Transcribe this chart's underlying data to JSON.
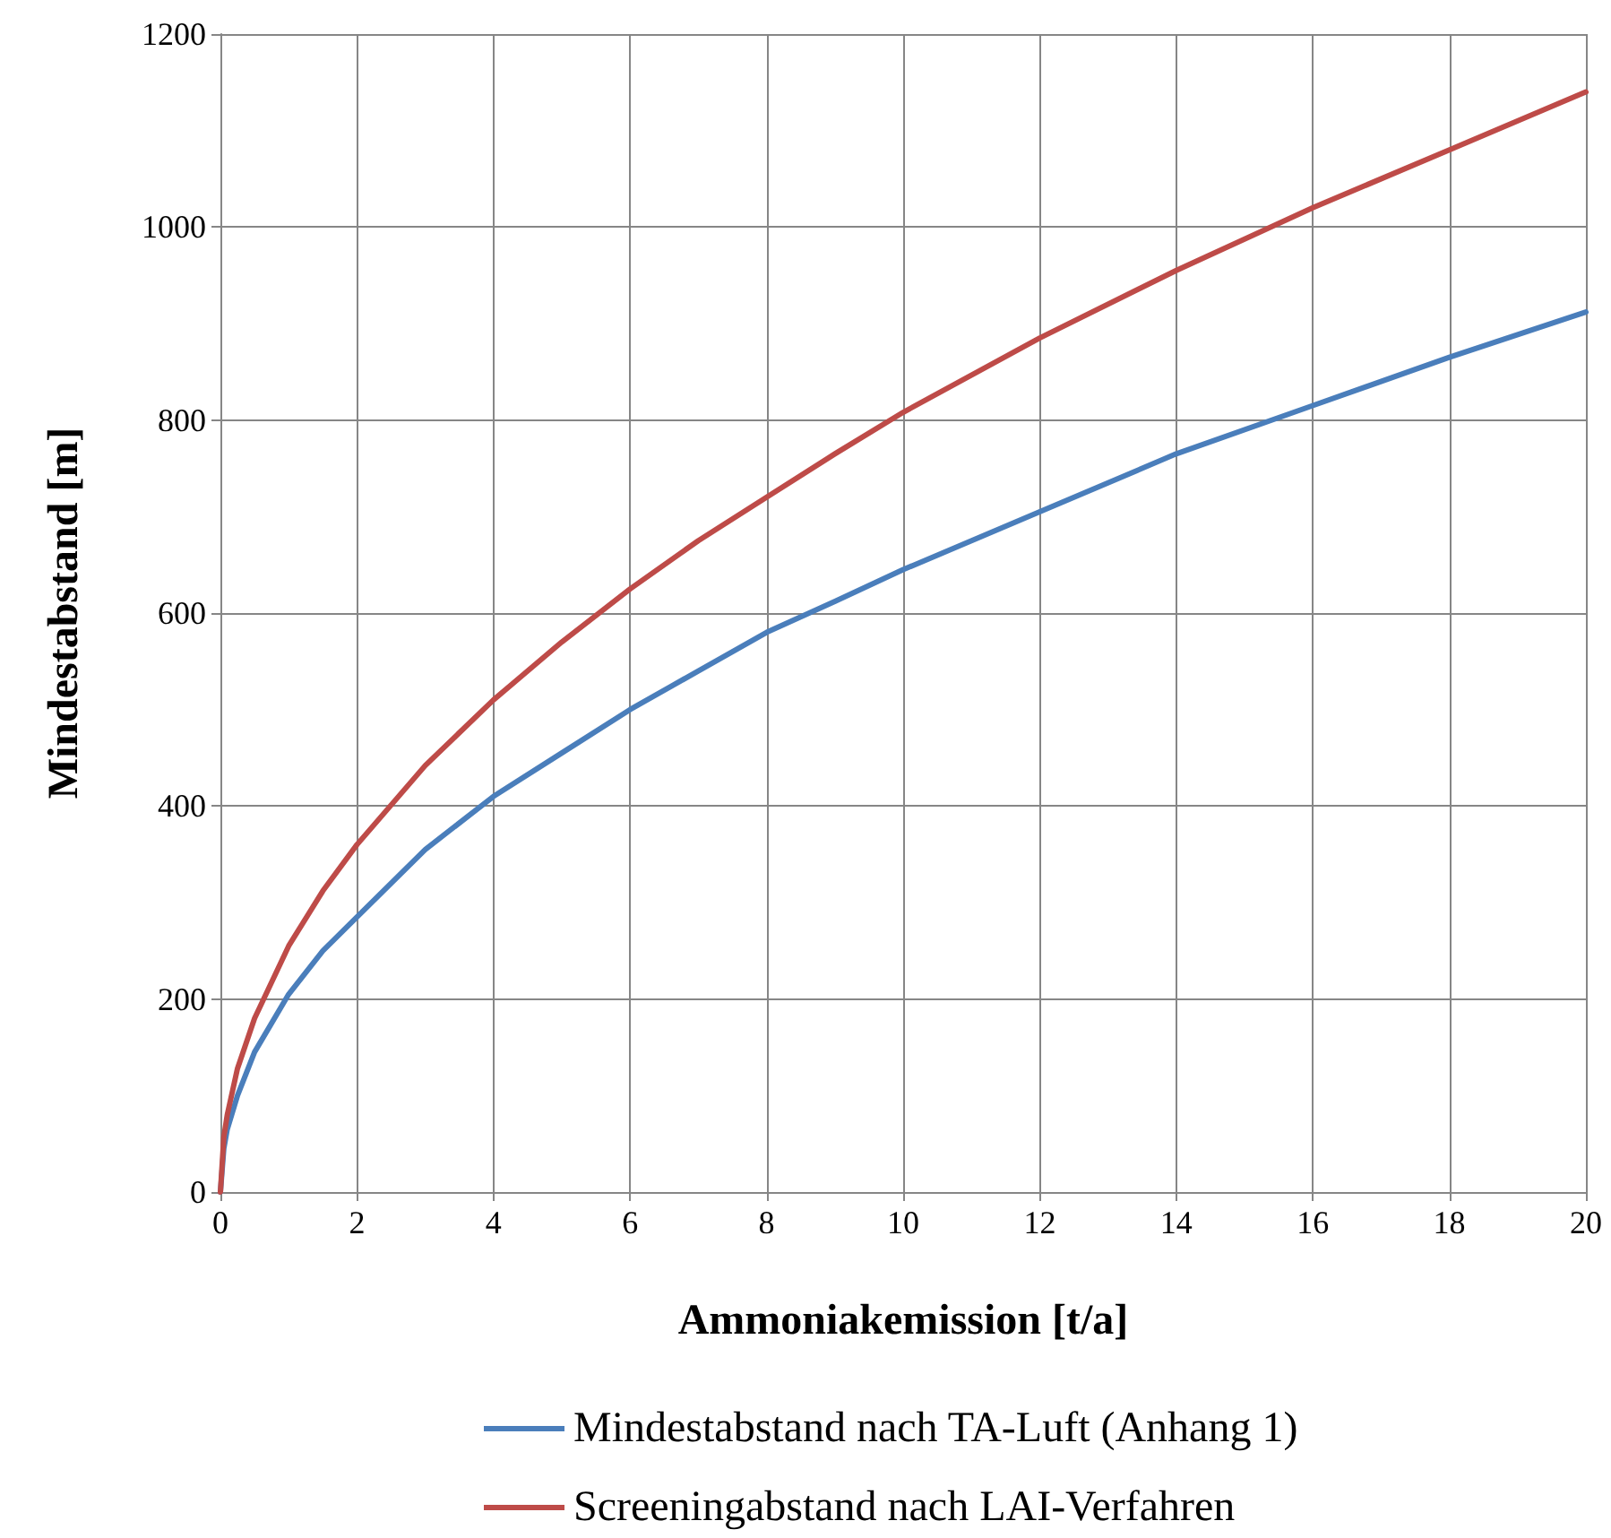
{
  "chart_data": {
    "type": "line",
    "xlabel": "Ammoniakemission [t/a]",
    "ylabel": "Mindestabstand [m]",
    "x": [
      0,
      0.05,
      0.1,
      0.25,
      0.5,
      1,
      1.5,
      2,
      3,
      4,
      5,
      6,
      7,
      8,
      9,
      10,
      12,
      14,
      16,
      18,
      20
    ],
    "series": [
      {
        "name": "Mindestabstand nach TA-Luft (Anhang 1)",
        "color": "#4a7ebb",
        "values": [
          0,
          45,
          65,
          100,
          145,
          205,
          250,
          285,
          355,
          410,
          455,
          500,
          540,
          580,
          612,
          645,
          705,
          765,
          815,
          865,
          912
        ]
      },
      {
        "name": "Screeningabstand nach LAI-Verfahren",
        "color": "#be4b48",
        "values": [
          0,
          57,
          80,
          128,
          180,
          255,
          312,
          360,
          442,
          510,
          570,
          625,
          675,
          720,
          765,
          808,
          885,
          955,
          1020,
          1080,
          1140
        ]
      }
    ],
    "xlim": [
      0,
      20
    ],
    "xticks": [
      0,
      2,
      4,
      6,
      8,
      10,
      12,
      14,
      16,
      18,
      20
    ],
    "ylim": [
      0,
      1200
    ],
    "yticks": [
      0,
      200,
      400,
      600,
      800,
      1000,
      1200
    ],
    "grid": true,
    "legend": "bottom",
    "marker": "none",
    "line_style": "solid"
  }
}
